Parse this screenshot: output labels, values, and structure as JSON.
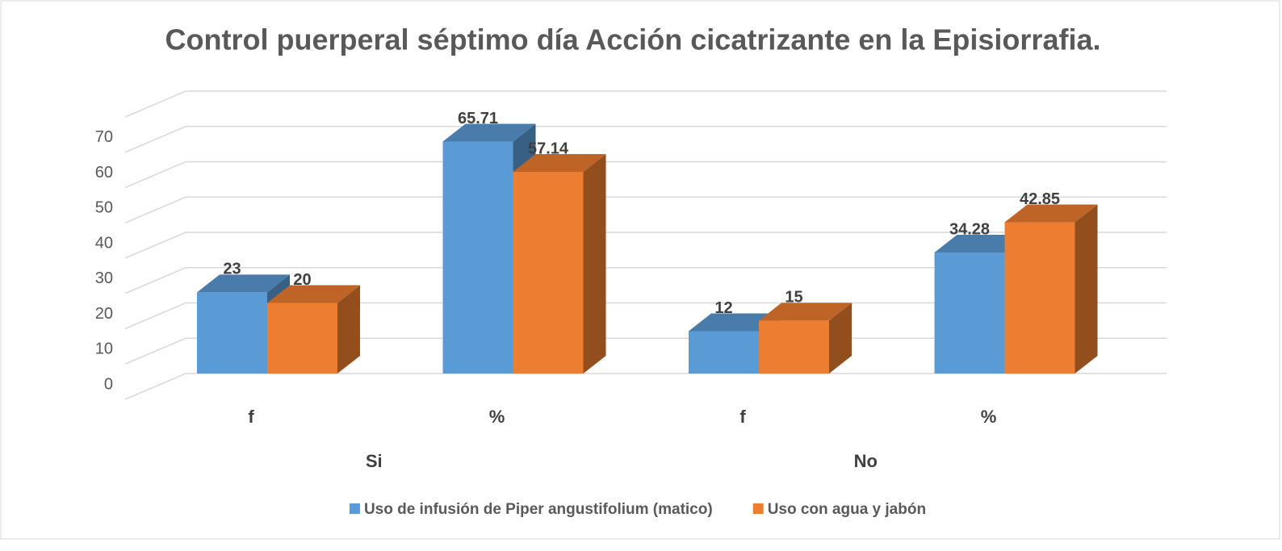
{
  "chart_data": {
    "type": "bar3d",
    "title": "Control puerperal séptimo día Acción cicatrizante en la Episiorrafia.",
    "categories": [
      "f",
      "%",
      "f",
      "%"
    ],
    "groups": [
      "Si",
      "No"
    ],
    "series": [
      {
        "name": "Uso de infusión de Piper angustifolium (matico)",
        "color": "#5b9bd5",
        "values": [
          23,
          65.71,
          12,
          34.28
        ]
      },
      {
        "name": "Uso con agua y jabón",
        "color": "#ed7d31",
        "values": [
          20,
          57.14,
          15,
          42.85
        ]
      }
    ],
    "ylim": [
      0,
      80
    ],
    "yticks": [
      0,
      10,
      20,
      30,
      40,
      50,
      60,
      70
    ],
    "grid": true,
    "legend": "bottom"
  }
}
